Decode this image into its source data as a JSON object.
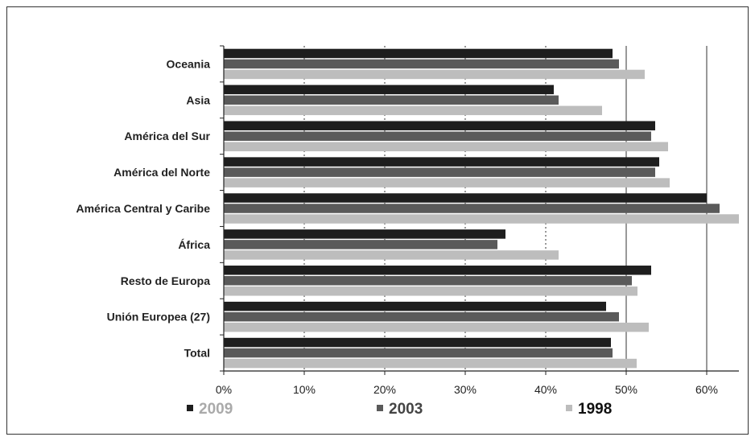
{
  "chart_data": {
    "type": "bar",
    "orientation": "horizontal",
    "categories": [
      "Oceania",
      "Asia",
      "América del Sur",
      "América del Norte",
      "América Central y Caribe",
      "África",
      "Resto de Europa",
      "Unión Europea (27)",
      "Total"
    ],
    "series": [
      {
        "name": "2009",
        "color": "#1e1e1e",
        "values": [
          48.3,
          41.0,
          53.6,
          54.1,
          60.0,
          35.0,
          53.1,
          47.5,
          48.1
        ]
      },
      {
        "name": "2003",
        "color": "#5a5a5a",
        "values": [
          49.1,
          41.6,
          53.1,
          53.6,
          61.6,
          34.0,
          50.7,
          49.1,
          48.3
        ]
      },
      {
        "name": "1998",
        "color": "#bdbdbd",
        "values": [
          52.3,
          47.0,
          55.2,
          55.4,
          64.0,
          41.6,
          51.4,
          52.8,
          51.3
        ]
      }
    ],
    "xlim": [
      0,
      64
    ],
    "xticks": [
      0,
      10,
      20,
      30,
      40,
      50,
      60
    ],
    "xtick_labels": [
      "0%",
      "10%",
      "20%",
      "30%",
      "40%",
      "50%",
      "60%"
    ],
    "legend_colors": [
      "#aaaaaa",
      "#444444",
      "#111111"
    ],
    "legend_placement": "bottom",
    "grid": "vertical"
  }
}
